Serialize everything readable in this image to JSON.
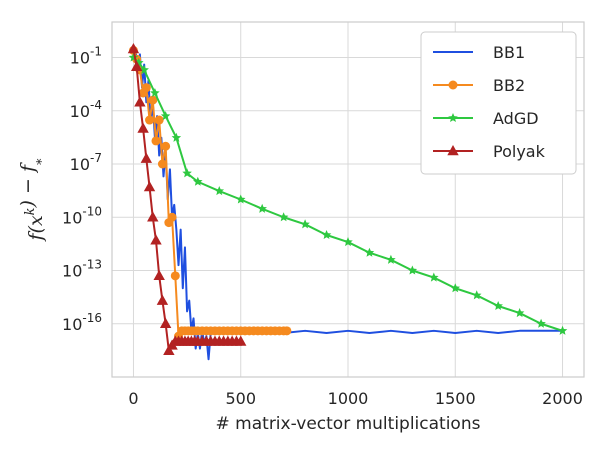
{
  "chart_data": {
    "type": "line",
    "title": "",
    "xlabel": "# matrix-vector multiplications",
    "ylabel": "f(x^k) − f_*",
    "yscale": "log",
    "xlim": [
      -100,
      2100
    ],
    "ylim": [
      1e-19,
      10
    ],
    "grid": true,
    "legend_position": "top-right",
    "x_ticks": [
      0,
      500,
      1000,
      1500,
      2000
    ],
    "x_tick_labels": [
      "0",
      "500",
      "1000",
      "1500",
      "2000"
    ],
    "y_ticks": [
      0.1,
      0.0001,
      1e-07,
      1e-10,
      1e-13,
      1e-16
    ],
    "y_tick_labels": [
      {
        "base": "10",
        "exp": "-1"
      },
      {
        "base": "10",
        "exp": "-4"
      },
      {
        "base": "10",
        "exp": "-7"
      },
      {
        "base": "10",
        "exp": "-10"
      },
      {
        "base": "10",
        "exp": "-13"
      },
      {
        "base": "10",
        "exp": "-16"
      }
    ],
    "series": [
      {
        "name": "BB1",
        "color": "#1f4fe0",
        "marker": "none",
        "x": [
          0,
          10,
          20,
          30,
          40,
          50,
          60,
          70,
          80,
          90,
          100,
          110,
          120,
          130,
          140,
          150,
          160,
          170,
          180,
          190,
          200,
          210,
          220,
          230,
          240,
          250,
          260,
          270,
          280,
          290,
          300,
          310,
          320,
          330,
          340,
          350,
          360,
          380,
          400,
          450,
          500,
          600,
          700,
          800,
          900,
          1000,
          1100,
          1200,
          1300,
          1400,
          1500,
          1600,
          1700,
          1800,
          1900,
          2000
        ],
        "y": [
          0.25,
          0.2,
          0.03,
          0.15,
          0.002,
          0.04,
          0.0003,
          0.005,
          2e-05,
          0.0003,
          3e-06,
          5e-05,
          3e-07,
          3e-06,
          2e-08,
          5e-07,
          1e-09,
          5e-08,
          1e-10,
          5e-10,
          2e-11,
          2e-13,
          2e-11,
          1e-14,
          2e-12,
          5e-16,
          2e-15,
          4e-17,
          2e-16,
          4e-18,
          3e-17,
          4e-18,
          4e-17,
          8e-18,
          2e-17,
          1e-18,
          3e-17,
          4e-17,
          3e-17,
          4e-17,
          3e-17,
          4e-17,
          3e-17,
          4e-17,
          3e-17,
          4e-17,
          3e-17,
          4e-17,
          3e-17,
          4e-17,
          3e-17,
          4e-17,
          3e-17,
          4e-17,
          4e-17,
          4e-17
        ]
      },
      {
        "name": "BB2",
        "color": "#f58a1f",
        "marker": "circle",
        "x": [
          0,
          15,
          30,
          45,
          60,
          75,
          90,
          105,
          120,
          135,
          150,
          165,
          180,
          195,
          210,
          225,
          240,
          255,
          270,
          285,
          300,
          320,
          340,
          360,
          380,
          400,
          420,
          440,
          460,
          480,
          500,
          520,
          540,
          560,
          580,
          600,
          620,
          640,
          660,
          680,
          700,
          715
        ],
        "y": [
          0.25,
          0.08,
          0.02,
          0.001,
          0.002,
          3e-05,
          0.0004,
          2e-06,
          3e-05,
          1e-07,
          1e-06,
          5e-11,
          1e-10,
          5e-14,
          2e-17,
          4e-17,
          4e-17,
          4e-17,
          4e-17,
          4e-17,
          4e-17,
          4e-17,
          4e-17,
          4e-17,
          4e-17,
          4e-17,
          4e-17,
          4e-17,
          4e-17,
          4e-17,
          4e-17,
          4e-17,
          4e-17,
          4e-17,
          4e-17,
          4e-17,
          4e-17,
          4e-17,
          4e-17,
          4e-17,
          4e-17,
          4e-17
        ]
      },
      {
        "name": "AdGD",
        "color": "#2ec840",
        "marker": "star",
        "x": [
          0,
          25,
          50,
          100,
          150,
          200,
          250,
          300,
          400,
          500,
          600,
          700,
          800,
          900,
          1000,
          1100,
          1200,
          1300,
          1400,
          1500,
          1600,
          1700,
          1800,
          1900,
          2000
        ],
        "y": [
          0.1,
          0.05,
          0.02,
          0.001,
          5e-05,
          3e-06,
          3e-08,
          1e-08,
          3e-09,
          1e-09,
          3e-10,
          1e-10,
          4e-11,
          1e-11,
          4e-12,
          1e-12,
          4e-13,
          1e-13,
          4e-14,
          1e-14,
          4e-15,
          1e-15,
          4e-16,
          1e-16,
          4e-17
        ]
      },
      {
        "name": "Polyak",
        "color": "#b22222",
        "marker": "triangle",
        "x": [
          0,
          15,
          30,
          45,
          60,
          75,
          90,
          105,
          120,
          135,
          150,
          165,
          180,
          195,
          210,
          225,
          240,
          255,
          270,
          285,
          300,
          320,
          340,
          360,
          380,
          400,
          420,
          440,
          460,
          480,
          500
        ],
        "y": [
          0.3,
          0.03,
          0.0003,
          1e-05,
          2e-07,
          5e-09,
          1e-10,
          5e-12,
          5e-14,
          2e-15,
          1e-16,
          3e-18,
          6e-18,
          1e-17,
          1e-17,
          1e-17,
          1e-17,
          1e-17,
          1e-17,
          1e-17,
          1e-17,
          1e-17,
          1e-17,
          1e-17,
          1e-17,
          1e-17,
          1e-17,
          1e-17,
          1e-17,
          1e-17,
          1e-17
        ]
      }
    ]
  }
}
